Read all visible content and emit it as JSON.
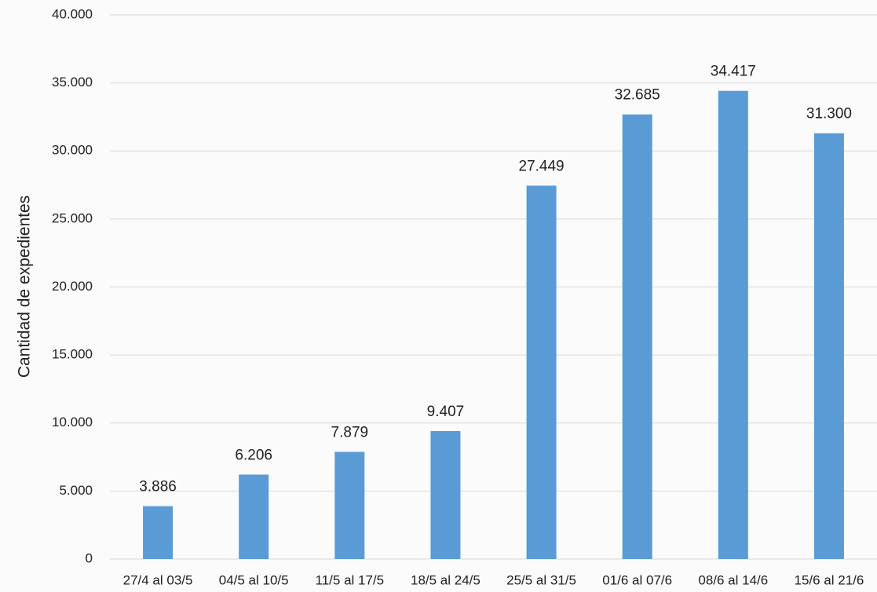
{
  "chart_data": {
    "type": "bar",
    "y_label": "Cantidad de expedientes",
    "categories": [
      "27/4 al 03/5",
      "04/5 al 10/5",
      "11/5 al 17/5",
      "18/5 al 24/5",
      "25/5 al 31/5",
      "01/6 al 07/6",
      "08/6 al 14/6",
      "15/6 al 21/6"
    ],
    "values": [
      3886,
      6206,
      7879,
      9407,
      27449,
      32685,
      34417,
      31300
    ],
    "value_labels": [
      "3.886",
      "6.206",
      "7.879",
      "9.407",
      "27.449",
      "32.685",
      "34.417",
      "31.300"
    ],
    "color": "#5b9bd5",
    "ylim": [
      0,
      40000
    ],
    "yticks": [
      0,
      {
        "value": 5000,
        "label": "5.000"
      },
      {
        "value": 10000,
        "label": "10.000"
      },
      {
        "value": 15000,
        "label": "15.000"
      },
      {
        "value": 20000,
        "label": "20.000"
      },
      {
        "value": 25000,
        "label": "25.000"
      },
      {
        "value": 30000,
        "label": "30.000"
      },
      {
        "value": 35000,
        "label": "35.000"
      },
      {
        "value": 40000,
        "label": "40.000"
      }
    ],
    "grid": true
  }
}
